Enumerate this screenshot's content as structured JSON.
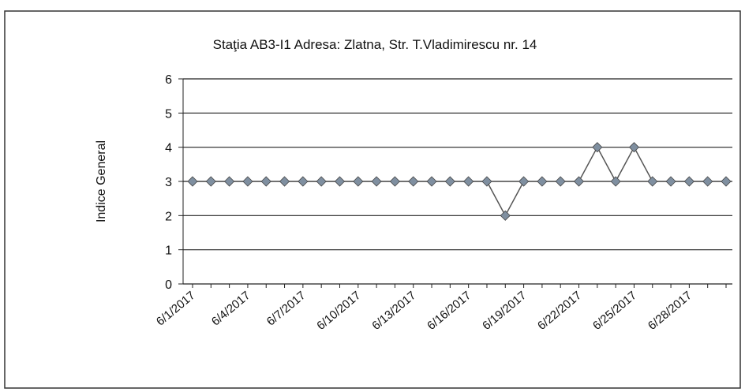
{
  "chart_data": {
    "type": "line",
    "title": "Staţia AB3-I1 Adresa: Zlatna, Str. T.Vladimirescu nr. 14",
    "y_label": "Indice General",
    "categories": [
      "6/1/2017",
      null,
      null,
      "6/4/2017",
      null,
      null,
      "6/7/2017",
      null,
      null,
      "6/10/2017",
      null,
      null,
      "6/13/2017",
      null,
      null,
      "6/16/2017",
      null,
      null,
      "6/19/2017",
      null,
      null,
      "6/22/2017",
      null,
      null,
      "6/25/2017",
      null,
      null,
      "6/28/2017",
      null,
      null
    ],
    "series": [
      {
        "name": "Indice General",
        "color": "#555555",
        "marker_color": "#7f8fa0",
        "values": [
          3,
          3,
          3,
          3,
          3,
          3,
          3,
          3,
          3,
          3,
          3,
          3,
          3,
          3,
          3,
          3,
          3,
          2,
          3,
          3,
          3,
          3,
          4,
          3,
          4,
          3,
          3,
          3,
          3,
          3
        ]
      }
    ],
    "ylim": [
      0,
      6
    ],
    "yticks": [
      0,
      1,
      2,
      3,
      4,
      5,
      6
    ],
    "grid": true
  }
}
